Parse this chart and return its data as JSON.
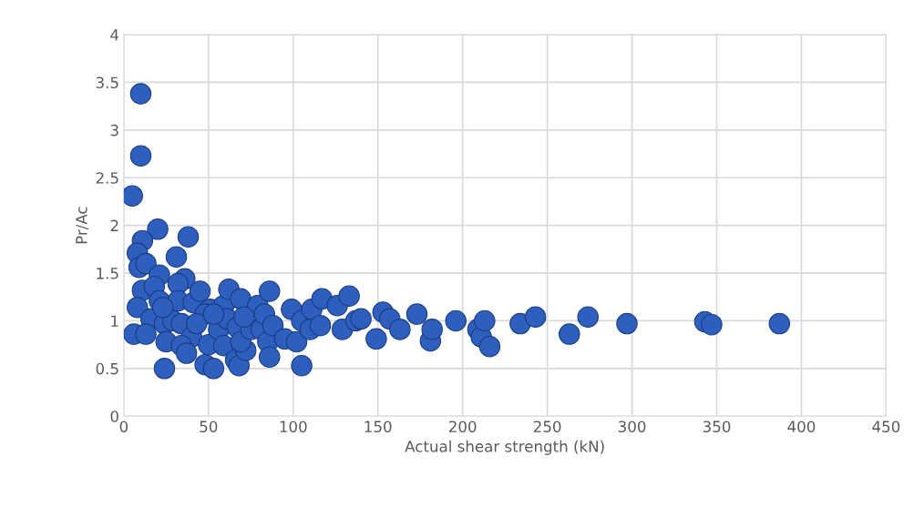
{
  "chart_data": {
    "type": "scatter",
    "xlabel": "Actual shear strength (kN)",
    "ylabel": "Pr/Ac",
    "xlim": [
      0,
      450
    ],
    "ylim": [
      0,
      4
    ],
    "xticks": [
      0,
      50,
      100,
      150,
      200,
      250,
      300,
      350,
      400,
      450
    ],
    "yticks": [
      0,
      0.5,
      1,
      1.5,
      2,
      2.5,
      3,
      3.5,
      4
    ],
    "grid": true,
    "marker": "circle",
    "series": [
      {
        "color": "#2e5fbf",
        "x": [
          10,
          10,
          5,
          20,
          38,
          11,
          8,
          31,
          9,
          13,
          21,
          36,
          32,
          11,
          18,
          8,
          21,
          16,
          32,
          41,
          51,
          59,
          62,
          69,
          79,
          86,
          48,
          6,
          13,
          24,
          29,
          34,
          25,
          40,
          34,
          37,
          24,
          48,
          53,
          50,
          56,
          61,
          67,
          59,
          66,
          68,
          72,
          69,
          75,
          71,
          81,
          85,
          86,
          83,
          88,
          95,
          99,
          105,
          105,
          102,
          110,
          111,
          116,
          117,
          126,
          129,
          133,
          137,
          140,
          149,
          153,
          157,
          163,
          173,
          181,
          182,
          196,
          209,
          211,
          213,
          216,
          234,
          243,
          263,
          274,
          297,
          343,
          347,
          387,
          45,
          43,
          53,
          23
        ],
        "values": [
          3.38,
          2.73,
          2.31,
          1.96,
          1.88,
          1.84,
          1.71,
          1.67,
          1.56,
          1.6,
          1.48,
          1.44,
          1.39,
          1.32,
          1.36,
          1.14,
          1.21,
          1.02,
          1.21,
          1.19,
          1.12,
          1.16,
          1.33,
          1.23,
          1.16,
          1.31,
          1.07,
          0.86,
          0.86,
          0.97,
          1.0,
          0.97,
          0.78,
          0.83,
          0.74,
          0.66,
          0.5,
          0.54,
          0.5,
          0.75,
          0.91,
          1.02,
          0.93,
          0.74,
          0.59,
          0.53,
          0.69,
          0.78,
          0.91,
          1.04,
          0.91,
          0.78,
          0.62,
          1.07,
          0.95,
          0.81,
          1.12,
          1.0,
          0.53,
          0.78,
          0.91,
          1.12,
          0.95,
          1.23,
          1.16,
          0.91,
          1.26,
          1.0,
          1.02,
          0.81,
          1.09,
          1.02,
          0.91,
          1.07,
          0.79,
          0.91,
          1.0,
          0.91,
          0.83,
          1.0,
          0.73,
          0.97,
          1.04,
          0.86,
          1.04,
          0.97,
          0.99,
          0.96,
          0.97,
          1.31,
          0.97,
          1.07,
          1.14
        ]
      }
    ]
  }
}
